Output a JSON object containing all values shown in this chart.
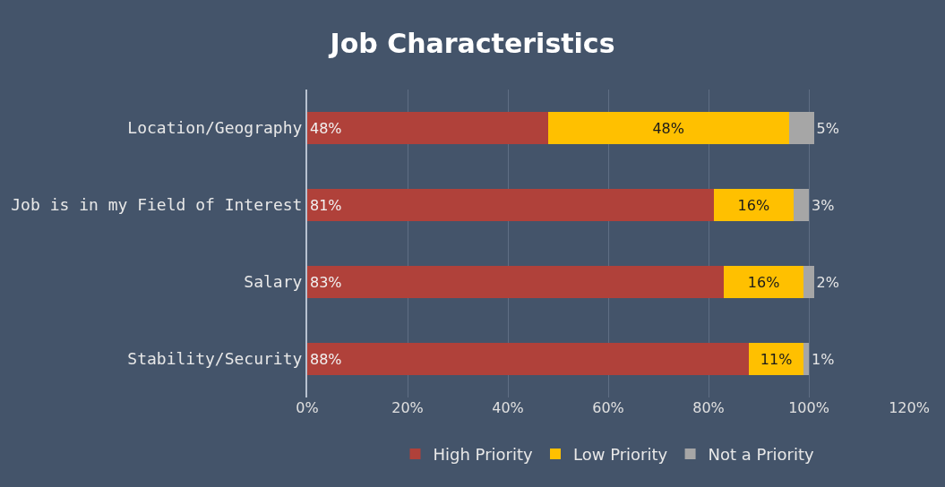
{
  "chart_data": {
    "type": "bar",
    "title": "Job Characteristics",
    "orientation": "horizontal",
    "stacked": true,
    "categories": [
      "Location/Geography",
      "Job is in my Field of Interest",
      "Salary",
      "Stability/Security"
    ],
    "series": [
      {
        "name": "High Priority",
        "color": "#b0413a",
        "values": [
          48,
          81,
          83,
          88
        ],
        "value_labels": [
          "48%",
          "81%",
          "83%",
          "88%"
        ]
      },
      {
        "name": "Low Priority",
        "color": "#ffc000",
        "values": [
          48,
          16,
          16,
          11
        ],
        "value_labels": [
          "48%",
          "16%",
          "16%",
          "11%"
        ]
      },
      {
        "name": "Not a Priority",
        "color": "#a6a6a6",
        "values": [
          5,
          3,
          2,
          1
        ],
        "value_labels": [
          "5%",
          "3%",
          "2%",
          "1%"
        ]
      }
    ],
    "xlim": [
      0,
      120
    ],
    "xticks": [
      {
        "value": 0,
        "label": "0%"
      },
      {
        "value": 20,
        "label": "20%"
      },
      {
        "value": 40,
        "label": "40%"
      },
      {
        "value": 60,
        "label": "60%"
      },
      {
        "value": 80,
        "label": "80%"
      },
      {
        "value": 100,
        "label": "100%"
      },
      {
        "value": 120,
        "label": "120%"
      }
    ],
    "grid": "x",
    "legend": "bottom"
  }
}
